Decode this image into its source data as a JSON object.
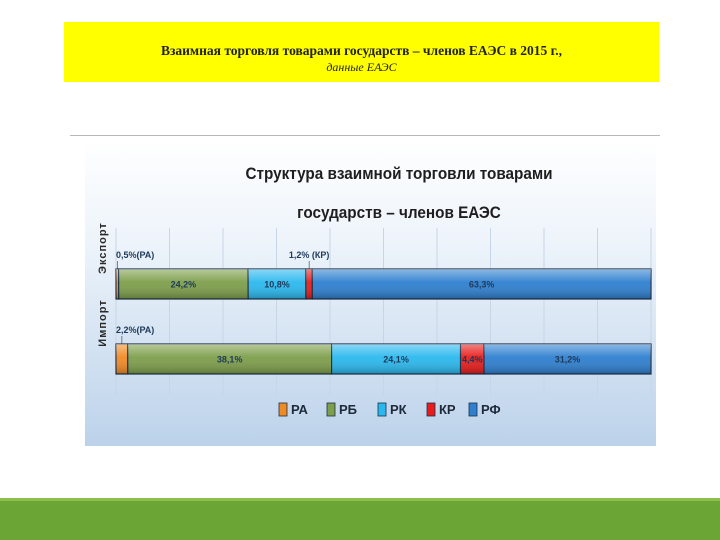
{
  "slide": {
    "title_line1": "Взаимная торговля товарами государств – членов ЕАЭС в 2015 г.,",
    "title_line2": "данные ЕАЭС"
  },
  "chart_data": {
    "type": "bar",
    "stacked": true,
    "orientation": "horizontal",
    "title": "Структура взаимной торговли товарами государств – членов ЕАЭС",
    "categories": [
      "Экспорт",
      "Импорт"
    ],
    "series": [
      {
        "name": "РА",
        "color": "#f08a24",
        "values": [
          0.5,
          2.2
        ],
        "labels": [
          "0,5%(РА)",
          "2,2%(РА)"
        ]
      },
      {
        "name": "РБ",
        "color": "#7d9e4a",
        "values": [
          24.2,
          38.1
        ],
        "labels": [
          "24,2%",
          "38,1%"
        ]
      },
      {
        "name": "РК",
        "color": "#2ab8ee",
        "values": [
          10.8,
          24.1
        ],
        "labels": [
          "10,8%",
          "24,1%"
        ]
      },
      {
        "name": "КР",
        "color": "#e81c1c",
        "values": [
          1.2,
          4.4
        ],
        "labels": [
          "1,2% (КР)",
          "4,4%"
        ]
      },
      {
        "name": "РФ",
        "color": "#2e7fd0",
        "values": [
          63.3,
          31.2
        ],
        "labels": [
          "63,3%",
          "31,2%"
        ]
      }
    ],
    "xlim": [
      0,
      100
    ],
    "legend": "bottom",
    "grid": true
  }
}
